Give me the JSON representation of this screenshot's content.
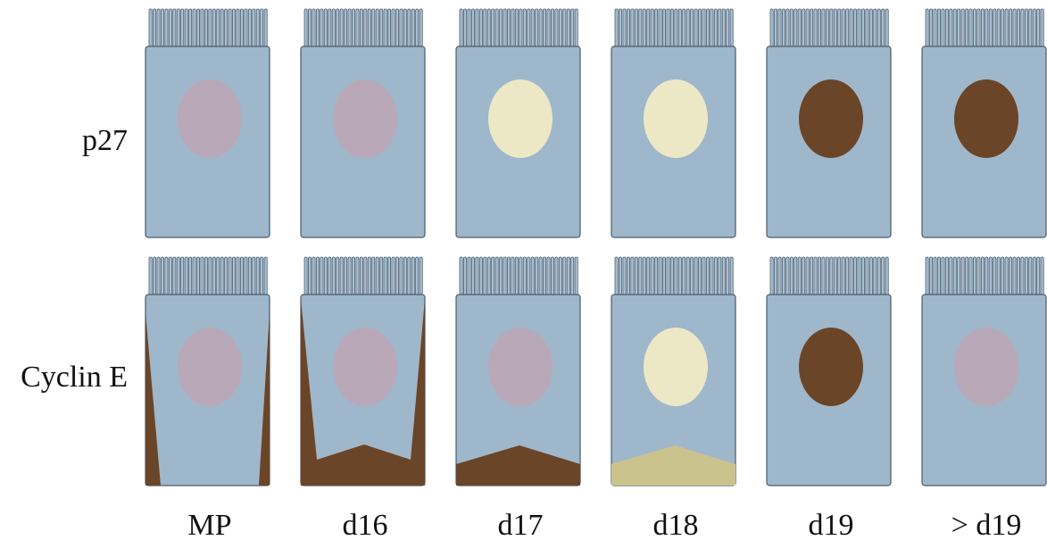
{
  "rows": [
    "p27",
    "Cyclin E"
  ],
  "columns": [
    "MP",
    "d16",
    "d17",
    "d18",
    "d19",
    "> d19"
  ]
}
